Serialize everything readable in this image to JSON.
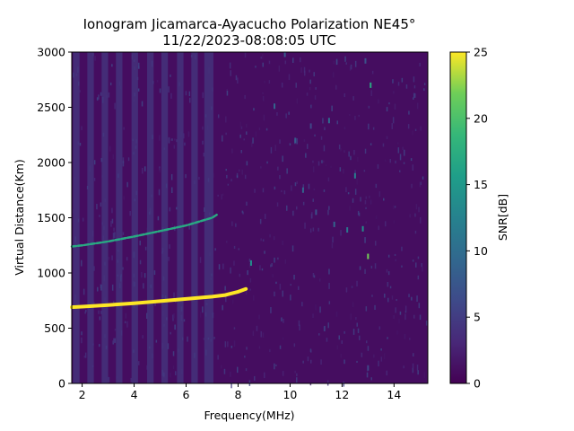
{
  "chart_data": {
    "type": "heatmap",
    "title": "Ionogram Jicamarca-Ayacucho Polarization NE45°",
    "subtitle": "11/22/2023-08:08:05 UTC",
    "xlabel": "Frequency(MHz)",
    "ylabel": "Virtual Distance(Km)",
    "colorbar_label": "SNR[dB]",
    "xlim": [
      1.6,
      15.3
    ],
    "ylim": [
      0,
      3000
    ],
    "clim": [
      0,
      25
    ],
    "colormap": "viridis",
    "x_ticks": [
      "2",
      "4",
      "6",
      "8",
      "10",
      "12",
      "14"
    ],
    "y_ticks": [
      "0",
      "500",
      "1000",
      "1500",
      "2000",
      "2500",
      "3000"
    ],
    "colorbar_ticks": [
      "0",
      "5",
      "10",
      "15",
      "20",
      "25"
    ],
    "grid": false,
    "background_snr": 1,
    "vertical_bands": [
      {
        "x0": 1.65,
        "x1": 1.9,
        "snr": 4.5
      },
      {
        "x0": 2.2,
        "x1": 2.45,
        "snr": 4.5
      },
      {
        "x0": 2.75,
        "x1": 3.0,
        "snr": 4.5
      },
      {
        "x0": 3.3,
        "x1": 3.55,
        "snr": 4.5
      },
      {
        "x0": 3.9,
        "x1": 4.15,
        "snr": 4.5
      },
      {
        "x0": 4.5,
        "x1": 4.75,
        "snr": 4.5
      },
      {
        "x0": 5.05,
        "x1": 5.3,
        "snr": 4.5
      },
      {
        "x0": 5.65,
        "x1": 5.9,
        "snr": 4.5
      },
      {
        "x0": 6.2,
        "x1": 6.45,
        "snr": 4.5
      },
      {
        "x0": 6.7,
        "x1": 7.05,
        "snr": 4.5
      }
    ],
    "series": [
      {
        "x": [
          1.6,
          2.0,
          3.0,
          4.0,
          5.0,
          6.0,
          7.0,
          7.5,
          8.0,
          8.3
        ],
        "y": [
          690,
          695,
          710,
          725,
          745,
          765,
          785,
          800,
          830,
          855
        ],
        "snr": 25
      },
      {
        "x": [
          1.6,
          2.0,
          3.0,
          4.0,
          5.0,
          6.0,
          7.0,
          7.2
        ],
        "y": [
          1240,
          1250,
          1285,
          1330,
          1380,
          1430,
          1500,
          1530
        ],
        "snr": 17
      }
    ],
    "speckles": [
      [
        8.5,
        1090,
        14
      ],
      [
        10.2,
        2200,
        8
      ],
      [
        11.5,
        2380,
        10
      ],
      [
        12.5,
        1880,
        12
      ],
      [
        12.8,
        1400,
        14
      ],
      [
        13.1,
        2700,
        17
      ],
      [
        9.4,
        2510,
        9
      ],
      [
        11.0,
        1550,
        7
      ],
      [
        10.5,
        1750,
        9
      ],
      [
        13.0,
        1150,
        22
      ],
      [
        12.2,
        1390,
        11
      ],
      [
        9.8,
        2980,
        8
      ],
      [
        13.0,
        140,
        6
      ],
      [
        11.7,
        1440,
        9
      ],
      [
        12.9,
        2920,
        7
      ],
      [
        10.8,
        2330,
        6
      ]
    ]
  }
}
